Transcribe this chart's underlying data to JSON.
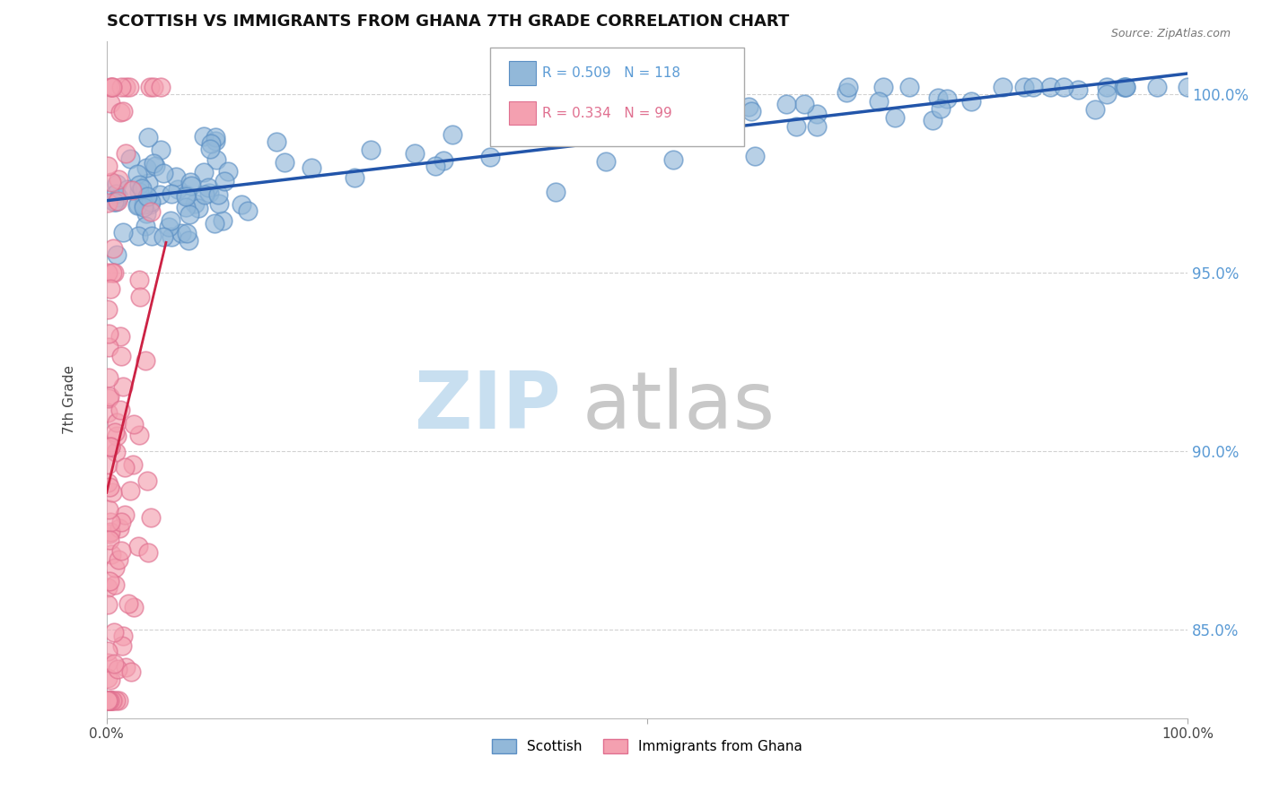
{
  "title": "SCOTTISH VS IMMIGRANTS FROM GHANA 7TH GRADE CORRELATION CHART",
  "source": "Source: ZipAtlas.com",
  "ylabel": "7th Grade",
  "ytick_labels": [
    "85.0%",
    "90.0%",
    "95.0%",
    "100.0%"
  ],
  "ytick_values": [
    0.85,
    0.9,
    0.95,
    1.0
  ],
  "xlim": [
    0.0,
    1.0
  ],
  "ylim": [
    0.825,
    1.015
  ],
  "legend_blue_label": "Scottish",
  "legend_pink_label": "Immigrants from Ghana",
  "R_blue": 0.509,
  "N_blue": 118,
  "R_pink": 0.334,
  "N_pink": 99,
  "blue_color": "#92b8d9",
  "pink_color": "#f4a0b0",
  "blue_edge_color": "#5b8fc4",
  "pink_edge_color": "#e07090",
  "blue_line_color": "#2255aa",
  "pink_line_color": "#cc2244",
  "watermark_zip_color": "#c8dff0",
  "watermark_atlas_color": "#c8c8c8",
  "grid_color": "#cccccc",
  "ytick_color": "#5b9bd5",
  "title_color": "#111111",
  "source_color": "#777777"
}
